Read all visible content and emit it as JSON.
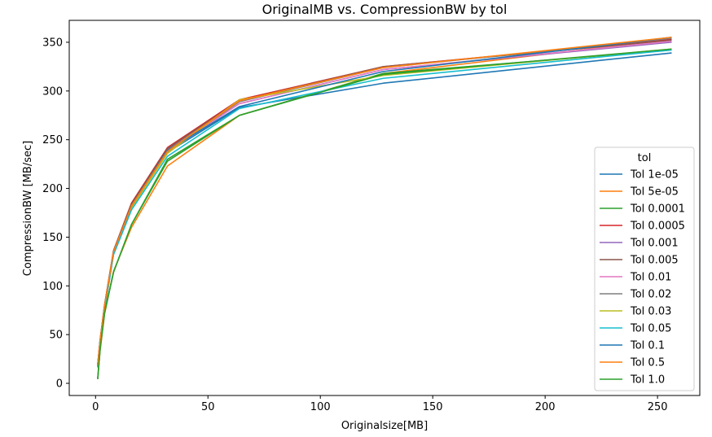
{
  "chart_data": {
    "type": "line",
    "title": "OriginalMB vs. CompressionBW by tol",
    "xlabel": "Originalsize[MB]",
    "ylabel": "CompressionBW [MB/sec]",
    "xlim": [
      -11.7,
      268.8
    ],
    "ylim": [
      -12.5,
      372.5
    ],
    "xticks": [
      0,
      50,
      100,
      150,
      200,
      250
    ],
    "yticks": [
      0,
      50,
      100,
      150,
      200,
      250,
      300,
      350
    ],
    "grid": false,
    "legend": {
      "title": "tol",
      "placement": "center-right"
    },
    "x": [
      1,
      2,
      4,
      8,
      16,
      32,
      64,
      128,
      256
    ],
    "series": [
      {
        "name": "Tol 1e-05",
        "color": "#1f77b4",
        "values": [
          20,
          40,
          75,
          133,
          180,
          237,
          283,
          308,
          339
        ]
      },
      {
        "name": "Tol 5e-05",
        "color": "#ff7f0e",
        "values": [
          6,
          33,
          71,
          115,
          160,
          223,
          275,
          318,
          353
        ]
      },
      {
        "name": "Tol 0.0001",
        "color": "#2ca02c",
        "values": [
          5,
          35,
          72,
          114,
          163,
          228,
          275,
          318,
          342
        ]
      },
      {
        "name": "Tol 0.0005",
        "color": "#d62728",
        "values": [
          20,
          44,
          80,
          136,
          185,
          242,
          291,
          325,
          353
        ]
      },
      {
        "name": "Tol 0.001",
        "color": "#9467bd",
        "values": [
          20,
          43,
          79,
          135,
          183,
          240,
          287,
          322,
          350
        ]
      },
      {
        "name": "Tol 0.005",
        "color": "#8c564b",
        "values": [
          19,
          43,
          80,
          136,
          184,
          241,
          290,
          325,
          352
        ]
      },
      {
        "name": "Tol 0.01",
        "color": "#e377c2",
        "values": [
          18,
          42,
          78,
          134,
          181,
          238,
          287,
          322,
          351
        ]
      },
      {
        "name": "Tol 0.02",
        "color": "#7f7f7f",
        "values": [
          18,
          42,
          78,
          134,
          182,
          239,
          289,
          324,
          354
        ]
      },
      {
        "name": "Tol 0.03",
        "color": "#bcbd22",
        "values": [
          17,
          41,
          77,
          133,
          180,
          236,
          291,
          316,
          343
        ]
      },
      {
        "name": "Tol 0.05",
        "color": "#17becf",
        "values": [
          17,
          40,
          76,
          132,
          178,
          233,
          282,
          313,
          342
        ]
      },
      {
        "name": "Tol 0.1",
        "color": "#1f77b4",
        "values": [
          19,
          43,
          79,
          135,
          182,
          239,
          284,
          320,
          355
        ]
      },
      {
        "name": "Tol 0.5",
        "color": "#ff7f0e",
        "values": [
          19,
          43,
          79,
          135,
          182,
          238,
          290,
          324,
          355
        ]
      },
      {
        "name": "Tol 1.0",
        "color": "#2ca02c",
        "values": [
          5,
          34,
          72,
          114,
          163,
          230,
          275,
          317,
          343
        ]
      }
    ]
  }
}
